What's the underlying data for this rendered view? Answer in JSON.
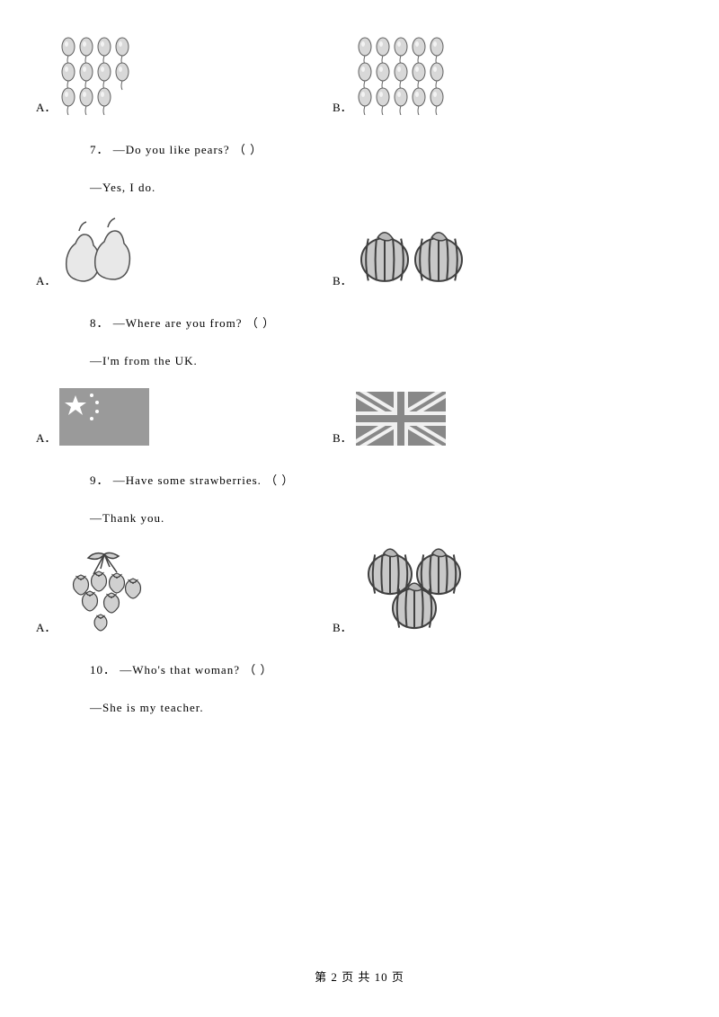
{
  "q6": {
    "optA": {
      "label": "A．",
      "balloon_rows": [
        4,
        4,
        3
      ],
      "balloon_fill": "#d8d8d8",
      "balloon_stroke": "#606060"
    },
    "optB": {
      "label": "B．",
      "balloon_rows": [
        5,
        5,
        5
      ],
      "balloon_fill": "#d8d8d8",
      "balloon_stroke": "#606060"
    }
  },
  "q7": {
    "num": "7．",
    "prompt": "—Do you like pears? （     ）",
    "answer": "—Yes, I do.",
    "optA": {
      "label": "A．",
      "fill": "#e8e8e8",
      "stroke": "#505050"
    },
    "optB": {
      "label": "B．",
      "fill": "#c8c8c8",
      "stroke": "#404040"
    }
  },
  "q8": {
    "num": "8．",
    "prompt": "—Where are you from? （     ）",
    "answer": "—I'm from the UK.",
    "optA": {
      "label": "A．",
      "flag_bg": "#9a9a9a",
      "star": "#ffffff"
    },
    "optB": {
      "label": "B．",
      "flag_bg": "#f0f0f0",
      "cross": "#888888"
    }
  },
  "q9": {
    "num": "9．",
    "prompt": "—Have some strawberries. （     ）",
    "answer": "—Thank you.",
    "optA": {
      "label": "A．",
      "fill": "#d0d0d0",
      "stroke": "#404040"
    },
    "optB": {
      "label": "B．",
      "fill": "#c8c8c8",
      "stroke": "#404040"
    }
  },
  "q10": {
    "num": "10．",
    "prompt": "—Who's that woman? （     ）",
    "answer": "—She is my teacher."
  },
  "footer": {
    "text": "第 2 页 共 10 页"
  }
}
